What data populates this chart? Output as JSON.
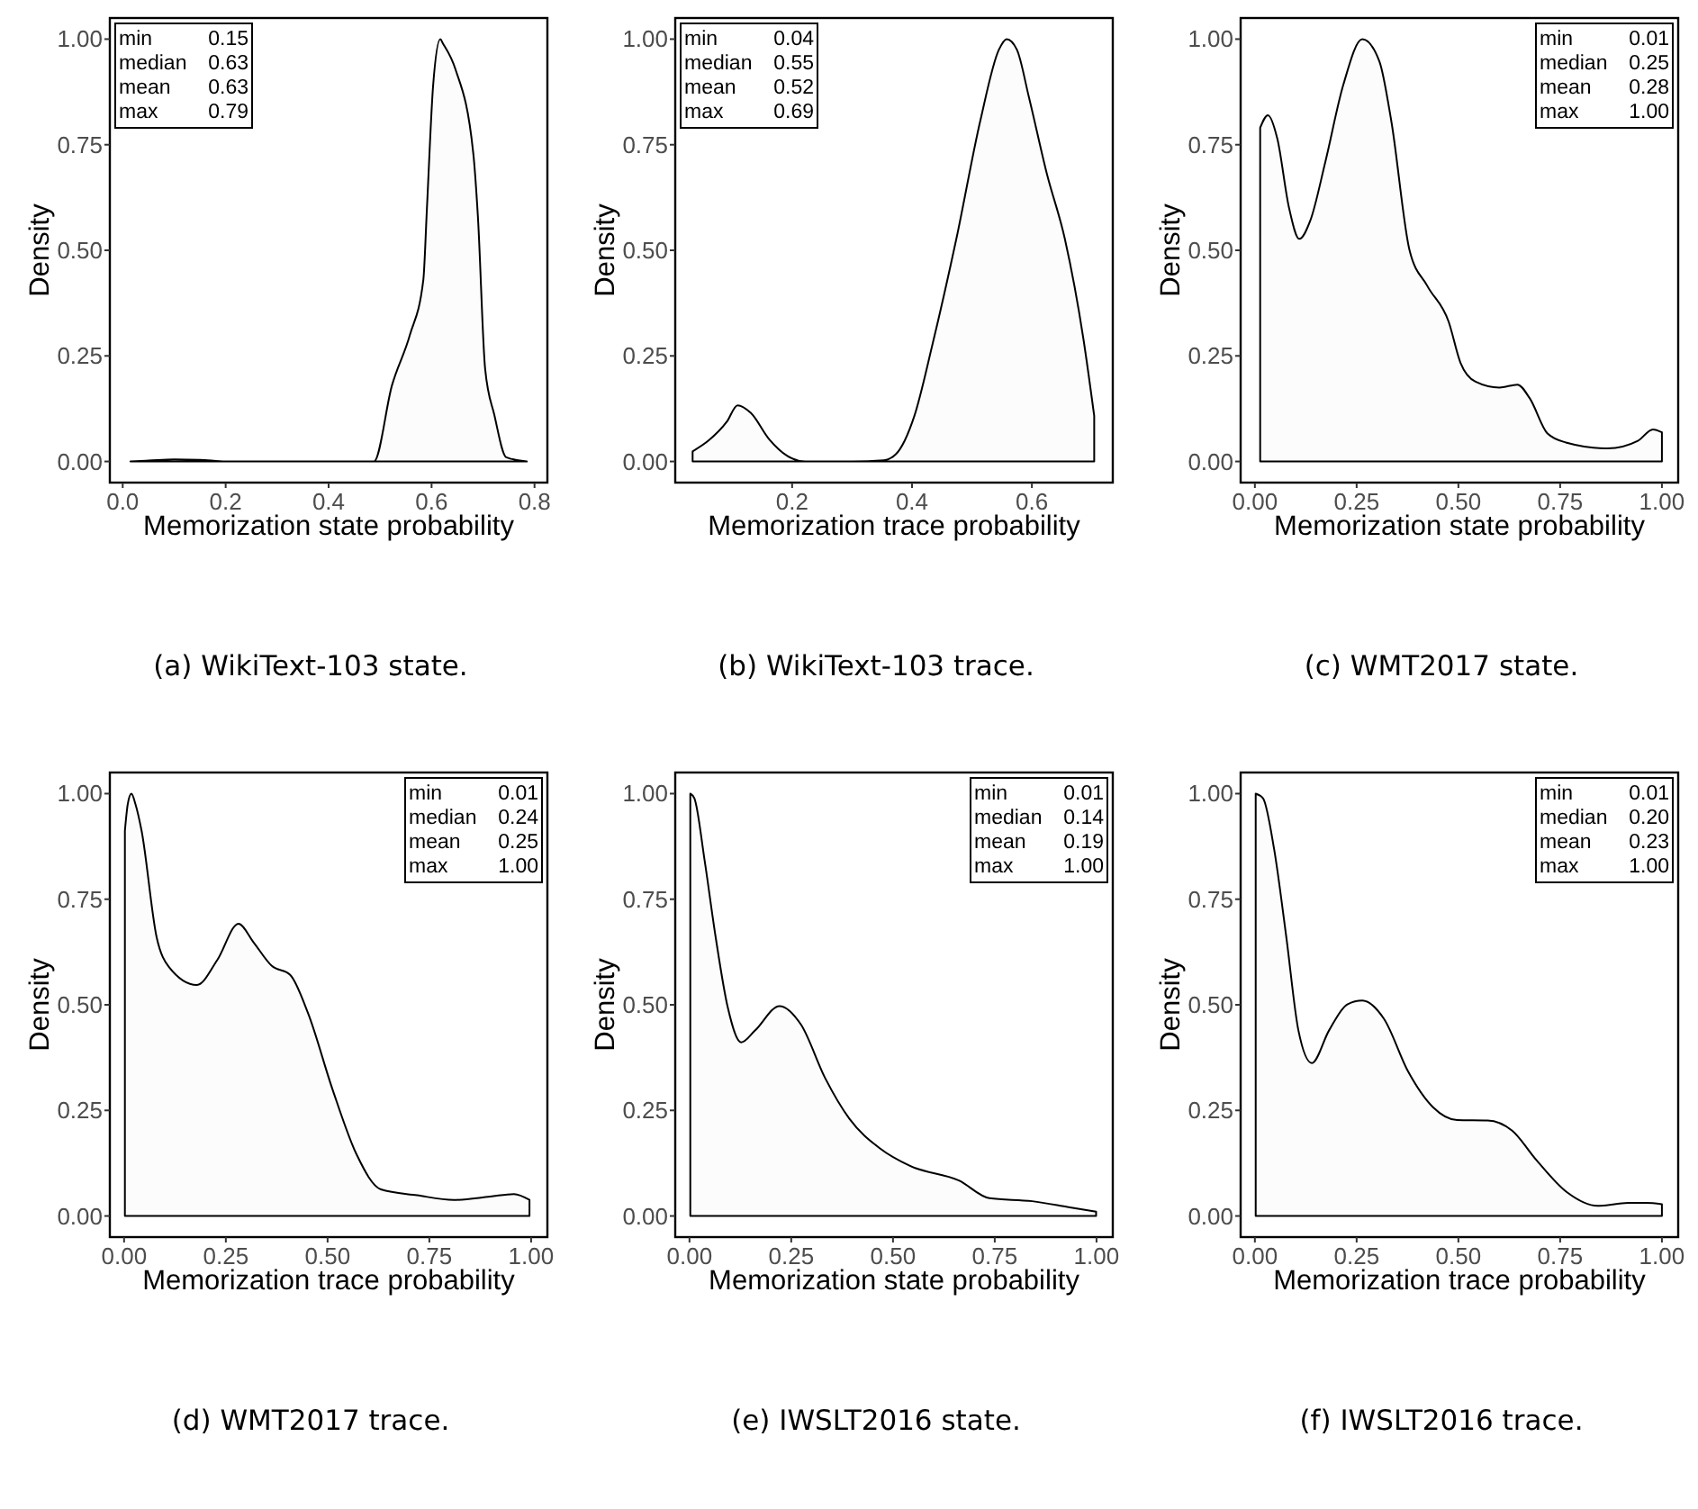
{
  "chart_data": [
    {
      "type": "area",
      "title": "(a) WikiText-103 state.",
      "xlabel": "Memorization state probability",
      "ylabel": "Density",
      "color": "#000000",
      "grid": false,
      "x": [
        0.015,
        0.05,
        0.1,
        0.15,
        0.2,
        0.3,
        0.4,
        0.488,
        0.523,
        0.558,
        0.584,
        0.591,
        0.603,
        0.617,
        0.622,
        0.646,
        0.681,
        0.69,
        0.704,
        0.722,
        0.745,
        0.785
      ],
      "values": [
        0,
        0.002,
        0.005,
        0.004,
        0,
        0,
        0,
        0,
        0.18,
        0.3,
        0.43,
        0.6,
        0.89,
        1.0,
        0.99,
        0.93,
        0.73,
        0.58,
        0.22,
        0.11,
        0.01,
        0
      ],
      "xlim": [
        -0.025,
        0.825
      ],
      "ylim": [
        -0.05,
        1.05
      ],
      "xticks": [
        {
          "value": 0,
          "label": "0.0"
        },
        0.2,
        0.4,
        0.6,
        0.8
      ],
      "yticks": [
        {
          "value": 0,
          "label": "0.00"
        },
        {
          "value": 0.25,
          "label": "0.25"
        },
        {
          "value": 0.5,
          "label": "0.50"
        },
        {
          "value": 0.75,
          "label": "0.75"
        },
        {
          "value": 1,
          "label": "1.00"
        }
      ],
      "annotations": [
        "min 0.15",
        "median 0.63",
        "mean 0.63",
        "max 0.79"
      ]
    },
    {
      "type": "area",
      "title": "(b) WikiText-103 trace.",
      "xlabel": "Memorization trace probability",
      "ylabel": "Density",
      "color": "#000000",
      "grid": false,
      "x": [
        0.034,
        0.061,
        0.091,
        0.109,
        0.131,
        0.162,
        0.192,
        0.222,
        0.3,
        0.353,
        0.373,
        0.404,
        0.434,
        0.474,
        0.514,
        0.545,
        0.558,
        0.575,
        0.595,
        0.625,
        0.655,
        0.686,
        0.704
      ],
      "values": [
        0.024,
        0.05,
        0.094,
        0.133,
        0.115,
        0.052,
        0.013,
        0,
        0,
        0.003,
        0.017,
        0.108,
        0.276,
        0.527,
        0.807,
        0.975,
        1.0,
        0.975,
        0.863,
        0.681,
        0.527,
        0.29,
        0.108
      ],
      "xlim": [
        0.005,
        0.735
      ],
      "ylim": [
        -0.05,
        1.05
      ],
      "xticks": [
        0.2,
        0.4,
        0.6
      ],
      "yticks": [
        {
          "value": 0,
          "label": "0.00"
        },
        {
          "value": 0.25,
          "label": "0.25"
        },
        {
          "value": 0.5,
          "label": "0.50"
        },
        {
          "value": 0.75,
          "label": "0.75"
        },
        {
          "value": 1,
          "label": "1.00"
        }
      ],
      "annotations": [
        "min 0.04",
        "median 0.55",
        "mean 0.52",
        "max 0.69"
      ]
    },
    {
      "type": "area",
      "title": "(c) WMT2017 state.",
      "xlabel": "Memorization state probability",
      "ylabel": "Density",
      "color": "#000000",
      "grid": false,
      "x": [
        0.013,
        0.032,
        0.055,
        0.084,
        0.109,
        0.136,
        0.173,
        0.217,
        0.264,
        0.306,
        0.335,
        0.38,
        0.424,
        0.476,
        0.505,
        0.542,
        0.601,
        0.645,
        0.675,
        0.719,
        0.764,
        0.867,
        0.941,
        0.978,
        1.0
      ],
      "values": [
        0.79,
        0.82,
        0.765,
        0.6,
        0.527,
        0.57,
        0.709,
        0.891,
        1.0,
        0.947,
        0.807,
        0.5,
        0.415,
        0.331,
        0.234,
        0.189,
        0.175,
        0.182,
        0.15,
        0.066,
        0.045,
        0.031,
        0.049,
        0.076,
        0.069
      ],
      "xlim": [
        -0.035,
        1.04
      ],
      "ylim": [
        -0.05,
        1.05
      ],
      "xticks": [
        {
          "value": 0,
          "label": "0.00"
        },
        0.25,
        {
          "value": 0.5,
          "label": "0.50"
        },
        0.75,
        {
          "value": 1,
          "label": "1.00"
        }
      ],
      "yticks": [
        {
          "value": 0,
          "label": "0.00"
        },
        {
          "value": 0.25,
          "label": "0.25"
        },
        {
          "value": 0.5,
          "label": "0.50"
        },
        {
          "value": 0.75,
          "label": "0.75"
        },
        {
          "value": 1,
          "label": "1.00"
        }
      ],
      "annotations": [
        "min 0.01",
        "median 0.25",
        "mean 0.28",
        "max 1.00"
      ]
    },
    {
      "type": "area",
      "title": "(d) WMT2017 trace.",
      "xlabel": "Memorization trace probability",
      "ylabel": "Density",
      "color": "#000000",
      "grid": false,
      "x": [
        0.002,
        0.009,
        0.018,
        0.028,
        0.043,
        0.08,
        0.11,
        0.179,
        0.229,
        0.281,
        0.318,
        0.363,
        0.408,
        0.452,
        0.512,
        0.571,
        0.631,
        0.72,
        0.81,
        0.899,
        0.958,
        0.996
      ],
      "values": [
        0.912,
        0.975,
        1.0,
        0.975,
        0.912,
        0.66,
        0.59,
        0.547,
        0.606,
        0.692,
        0.648,
        0.592,
        0.571,
        0.48,
        0.3,
        0.146,
        0.063,
        0.049,
        0.038,
        0.046,
        0.052,
        0.038
      ],
      "xlim": [
        -0.035,
        1.04
      ],
      "ylim": [
        -0.05,
        1.05
      ],
      "xticks": [
        {
          "value": 0,
          "label": "0.00"
        },
        0.25,
        {
          "value": 0.5,
          "label": "0.50"
        },
        0.75,
        {
          "value": 1,
          "label": "1.00"
        }
      ],
      "yticks": [
        {
          "value": 0,
          "label": "0.00"
        },
        {
          "value": 0.25,
          "label": "0.25"
        },
        {
          "value": 0.5,
          "label": "0.50"
        },
        {
          "value": 0.75,
          "label": "0.75"
        },
        {
          "value": 1,
          "label": "1.00"
        }
      ],
      "annotations": [
        "min 0.01",
        "median 0.24",
        "mean 0.25",
        "max 1.00"
      ]
    },
    {
      "type": "area",
      "title": "(e) IWSLT2016 state.",
      "xlabel": "Memorization state probability",
      "ylabel": "Density",
      "color": "#000000",
      "grid": false,
      "x": [
        0.002,
        0.012,
        0.037,
        0.064,
        0.094,
        0.127,
        0.161,
        0.221,
        0.274,
        0.333,
        0.393,
        0.468,
        0.543,
        0.662,
        0.737,
        0.842,
        0.931,
        0.999
      ],
      "values": [
        1.0,
        0.989,
        0.843,
        0.662,
        0.494,
        0.411,
        0.439,
        0.497,
        0.453,
        0.327,
        0.23,
        0.16,
        0.118,
        0.084,
        0.042,
        0.035,
        0.021,
        0.01
      ],
      "xlim": [
        -0.035,
        1.04
      ],
      "ylim": [
        -0.05,
        1.05
      ],
      "xticks": [
        {
          "value": 0,
          "label": "0.00"
        },
        0.25,
        {
          "value": 0.5,
          "label": "0.50"
        },
        0.75,
        {
          "value": 1,
          "label": "1.00"
        }
      ],
      "yticks": [
        {
          "value": 0,
          "label": "0.00"
        },
        {
          "value": 0.25,
          "label": "0.25"
        },
        {
          "value": 0.5,
          "label": "0.50"
        },
        {
          "value": 0.75,
          "label": "0.75"
        },
        {
          "value": 1,
          "label": "1.00"
        }
      ],
      "annotations": [
        "min 0.01",
        "median 0.14",
        "mean 0.19",
        "max 1.00"
      ]
    },
    {
      "type": "area",
      "title": "(f) IWSLT2016 trace.",
      "xlabel": "Memorization trace probability",
      "ylabel": "Density",
      "color": "#000000",
      "grid": false,
      "x": [
        0.002,
        0.02,
        0.047,
        0.077,
        0.107,
        0.14,
        0.182,
        0.227,
        0.264,
        0.317,
        0.377,
        0.437,
        0.497,
        0.572,
        0.632,
        0.692,
        0.767,
        0.842,
        0.917,
        0.962,
        1.0
      ],
      "values": [
        1.0,
        0.989,
        0.87,
        0.662,
        0.439,
        0.362,
        0.439,
        0.501,
        0.51,
        0.467,
        0.341,
        0.258,
        0.227,
        0.226,
        0.202,
        0.132,
        0.056,
        0.024,
        0.031,
        0.031,
        0.028
      ],
      "xlim": [
        -0.035,
        1.04
      ],
      "ylim": [
        -0.05,
        1.05
      ],
      "xticks": [
        {
          "value": 0,
          "label": "0.00"
        },
        0.25,
        {
          "value": 0.5,
          "label": "0.50"
        },
        0.75,
        {
          "value": 1,
          "label": "1.00"
        }
      ],
      "yticks": [
        {
          "value": 0,
          "label": "0.00"
        },
        {
          "value": 0.25,
          "label": "0.25"
        },
        {
          "value": 0.5,
          "label": "0.50"
        },
        {
          "value": 0.75,
          "label": "0.75"
        },
        {
          "value": 1,
          "label": "1.00"
        }
      ],
      "annotations": [
        "min 0.01",
        "median 0.20",
        "mean 0.23",
        "max 1.00"
      ]
    }
  ]
}
